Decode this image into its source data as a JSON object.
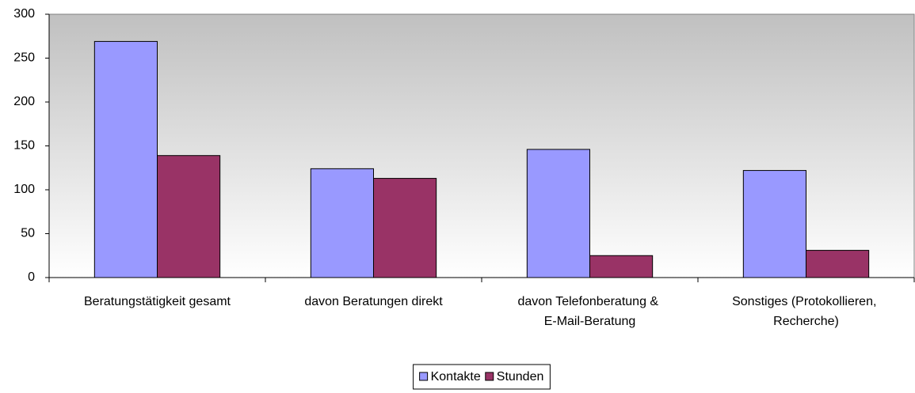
{
  "chart_data": {
    "type": "bar",
    "categories": [
      "Beratungstätigkeit gesamt",
      "davon Beratungen direkt",
      "davon Telefonberatung & E-Mail-Beratung",
      "Sonstiges (Protokollieren, Recherche)"
    ],
    "series": [
      {
        "name": "Kontakte",
        "color": "#9999ff",
        "values": [
          269,
          124,
          146,
          122
        ]
      },
      {
        "name": "Stunden",
        "color": "#993366",
        "values": [
          139,
          113,
          25,
          31
        ]
      }
    ],
    "ylim": [
      0,
      300
    ],
    "yticks": [
      0,
      50,
      100,
      150,
      200,
      250,
      300
    ],
    "legend": "bottom"
  }
}
